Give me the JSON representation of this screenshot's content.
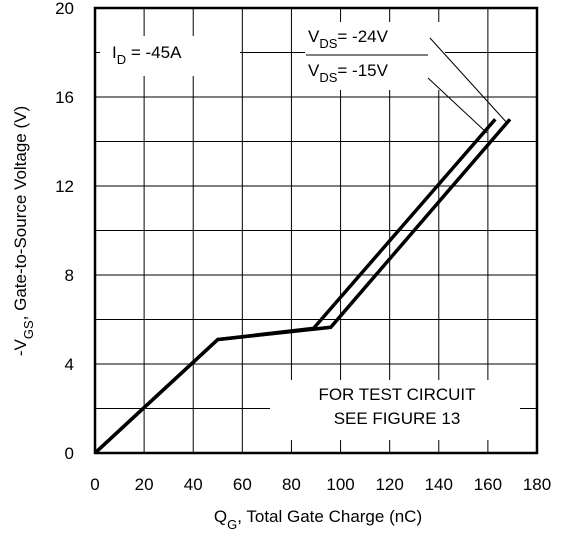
{
  "chart_data": {
    "type": "line",
    "xlabel": {
      "main": "Q",
      "sub": "G",
      "rest": ", Total Gate Charge (nC)"
    },
    "ylabel": {
      "main": "-V",
      "sub": "GS",
      "rest": ", Gate-to-Source Voltage (V)"
    },
    "xlim": [
      0,
      180
    ],
    "ylim": [
      0,
      20
    ],
    "x_ticks": [
      "0",
      "20",
      "40",
      "60",
      "80",
      "100",
      "120",
      "140",
      "160",
      "180"
    ],
    "y_ticks": [
      "0",
      "4",
      "8",
      "12",
      "16",
      "20"
    ],
    "grid": true,
    "series": [
      {
        "name": {
          "main": "V",
          "sub": "DS",
          "rest": "= -15V"
        },
        "points": [
          [
            0,
            0
          ],
          [
            50,
            5.1
          ],
          [
            89,
            5.6
          ],
          [
            163,
            15
          ]
        ]
      },
      {
        "name": {
          "main": "V",
          "sub": "DS",
          "rest": "= -24V"
        },
        "points": [
          [
            0,
            0
          ],
          [
            50,
            5.1
          ],
          [
            96,
            5.65
          ],
          [
            169,
            15
          ]
        ]
      }
    ],
    "annotations": {
      "current": {
        "main": "I",
        "sub": "D",
        "rest": " = -45A"
      },
      "note_line1": "FOR TEST CIRCUIT",
      "note_line2": "SEE FIGURE 13"
    },
    "line_color": "#000000"
  }
}
